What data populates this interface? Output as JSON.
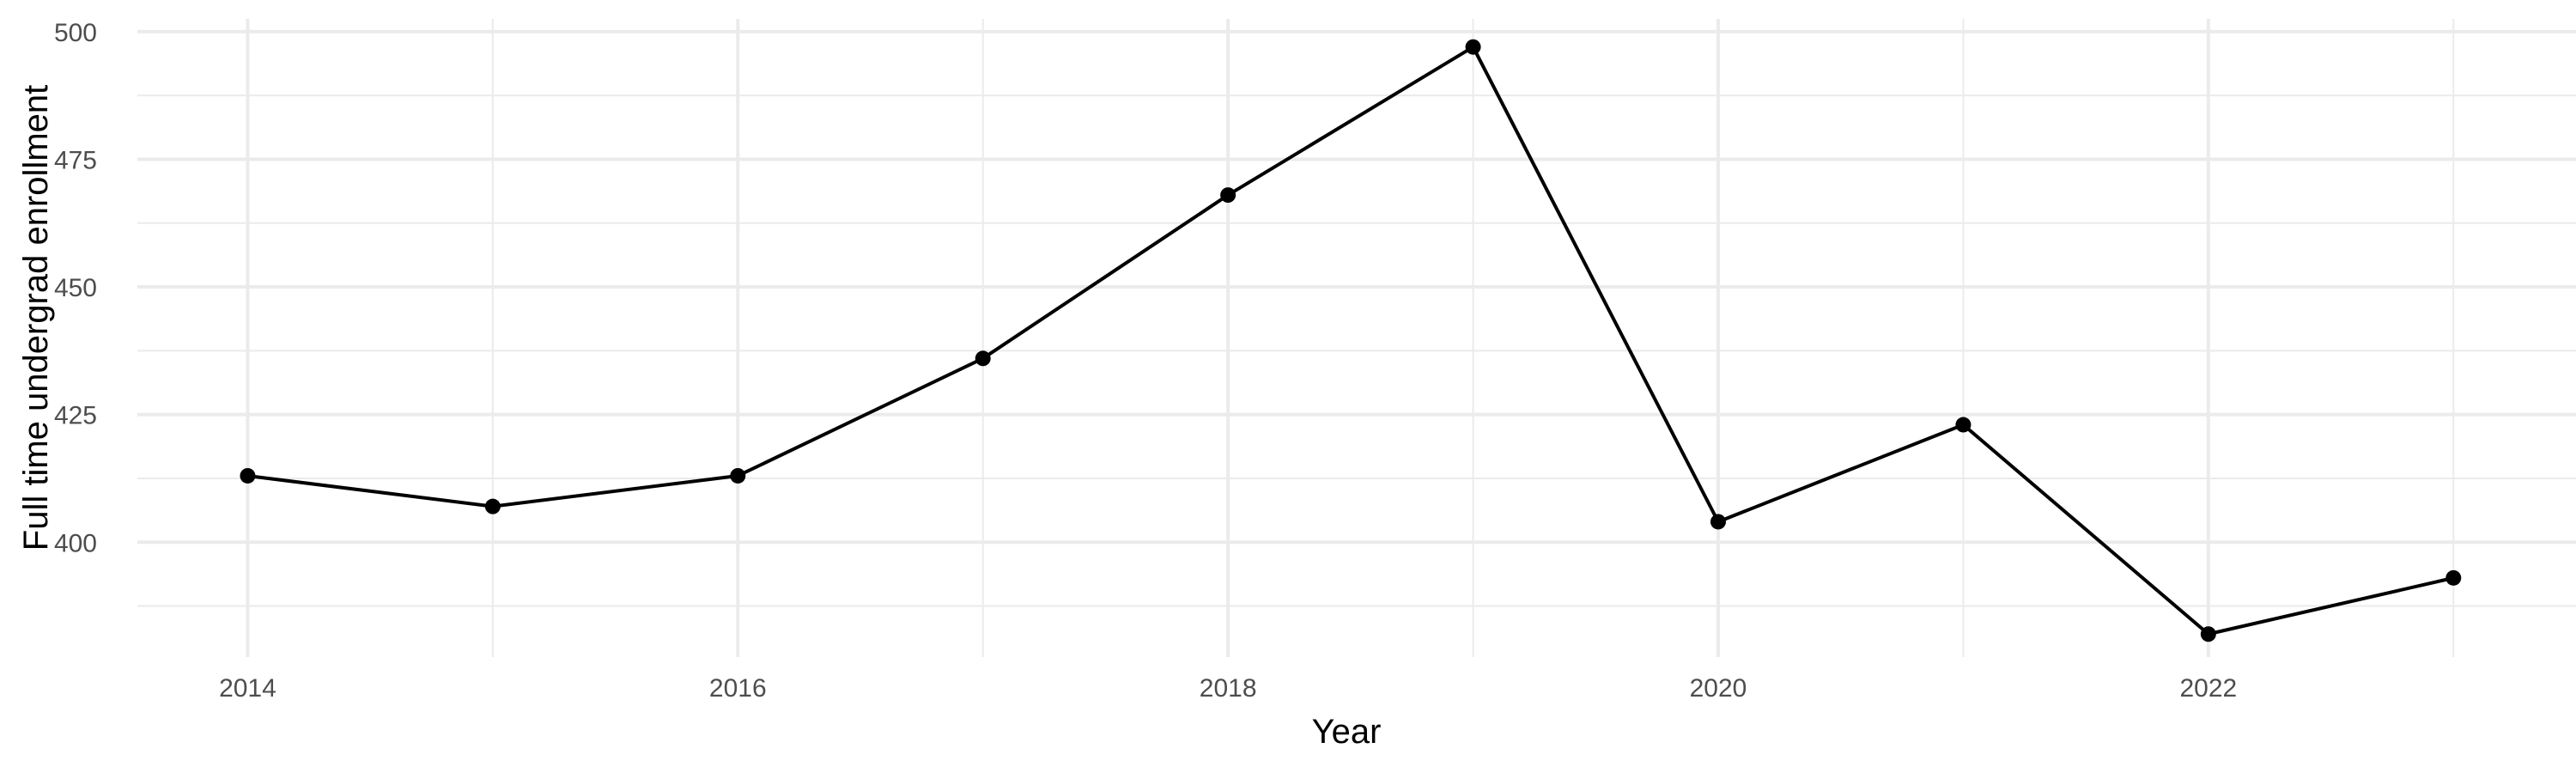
{
  "chart_data": {
    "type": "line",
    "title": "",
    "xlabel": "Year",
    "ylabel": "Full time undergrad enrollment",
    "x": [
      2014,
      2015,
      2016,
      2017,
      2018,
      2019,
      2020,
      2021,
      2022,
      2023
    ],
    "series": [
      {
        "values": [
          413,
          407,
          413,
          436,
          468,
          497,
          404,
          423,
          382,
          393
        ]
      }
    ],
    "xlim": [
      2013.55,
      2023.5
    ],
    "ylim": [
      377.5,
      502.5
    ],
    "x_ticks": [
      "2014",
      "2016",
      "2018",
      "2020",
      "2022"
    ],
    "y_ticks": [
      "400",
      "425",
      "450",
      "475",
      "500"
    ],
    "grid": true,
    "legend": "none",
    "colors": {
      "line": "#000000",
      "grid": "#ebebeb",
      "text": "#4d4d4d"
    }
  }
}
